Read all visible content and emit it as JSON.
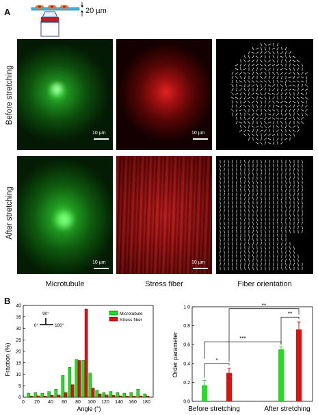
{
  "panel_a": {
    "letter": "A",
    "thickness_label": "20 µm",
    "rows": [
      "Before stretching",
      "After stretching"
    ],
    "columns": [
      "Microtubule",
      "Stress fiber",
      "Fiber orientation"
    ],
    "scale_label": "10 µm",
    "colors": {
      "microtubule": "#22c622",
      "stress_fiber": "#e01010",
      "orientation_bg": "#000000"
    }
  },
  "panel_b": {
    "letter": "B"
  },
  "chart_data": [
    {
      "type": "bar",
      "xlabel": "Angle (°)",
      "ylabel": "Fraction (%)",
      "xlim": [
        0,
        190
      ],
      "ylim": [
        0,
        40
      ],
      "xticks": [
        0,
        20,
        40,
        60,
        80,
        100,
        120,
        140,
        160,
        180
      ],
      "yticks": [
        0,
        5,
        10,
        15,
        20,
        25,
        30,
        35,
        40
      ],
      "legend": "top-right",
      "inset": {
        "top": "90°",
        "left": "0°",
        "right": "180°"
      },
      "x": [
        10,
        20,
        30,
        40,
        50,
        60,
        70,
        80,
        90,
        100,
        110,
        120,
        130,
        140,
        150,
        160,
        170,
        180
      ],
      "series": [
        {
          "name": "Microtubule",
          "color": "#22dd22",
          "values": [
            1.8,
            2.0,
            1.8,
            2.5,
            3.5,
            9.5,
            13.0,
            16.5,
            16.0,
            10.5,
            3.0,
            2.0,
            2.5,
            2.0,
            1.8,
            2.0,
            3.5,
            1.5
          ]
        },
        {
          "name": "Stress fiber",
          "color": "#e01010",
          "values": [
            0.5,
            0.6,
            0.5,
            0.8,
            1.0,
            2.0,
            5.5,
            16.0,
            38.5,
            4.0,
            1.5,
            1.0,
            0.8,
            0.6,
            0.5,
            0.5,
            0.6,
            0.5
          ]
        }
      ]
    },
    {
      "type": "bar",
      "ylabel": "Order parameter",
      "ylim": [
        0.0,
        1.0
      ],
      "yticks": [
        0.0,
        0.2,
        0.4,
        0.6,
        0.8,
        1.0
      ],
      "categories": [
        "Before stretching",
        "After stretching"
      ],
      "series": [
        {
          "name": "Microtubule",
          "color": "#22dd22",
          "values": [
            0.17,
            0.55
          ],
          "errors": [
            0.05,
            0.03
          ]
        },
        {
          "name": "Stress fiber",
          "color": "#e01010",
          "values": [
            0.3,
            0.76
          ],
          "errors": [
            0.05,
            0.08
          ]
        }
      ],
      "significance": [
        "*",
        "***",
        "**",
        "**"
      ]
    }
  ]
}
